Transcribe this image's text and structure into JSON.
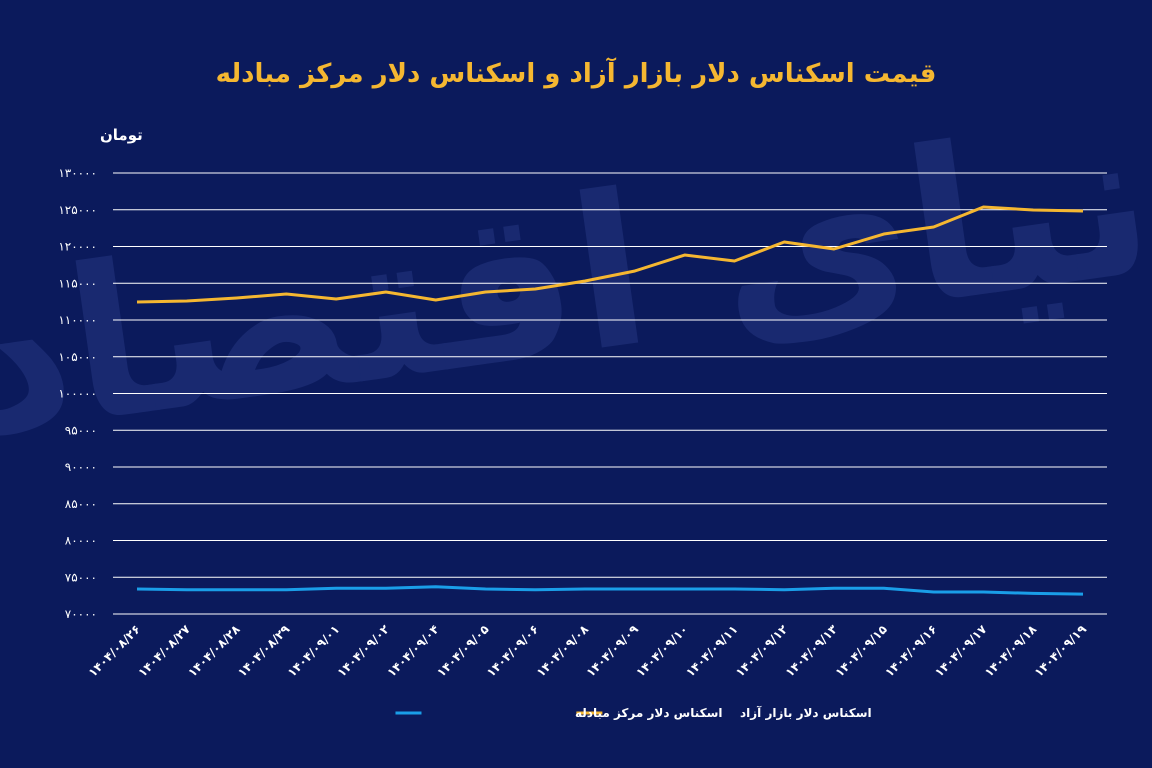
{
  "chart_data": {
    "type": "line",
    "title": "قیمت اسکناس دلار بازار آزاد و اسکناس دلار مرکز مبادله",
    "y_label": "تومان",
    "watermark": "دنیای اقتصاد",
    "categories": [
      "۱۴۰۴/۰۸/۲۶",
      "۱۴۰۴/۰۸/۲۷",
      "۱۴۰۴/۰۸/۲۸",
      "۱۴۰۴/۰۸/۲۹",
      "۱۴۰۴/۰۹/۰۱",
      "۱۴۰۴/۰۹/۰۲",
      "۱۴۰۴/۰۹/۰۴",
      "۱۴۰۴/۰۹/۰۵",
      "۱۴۰۴/۰۹/۰۶",
      "۱۴۰۴/۰۹/۰۸",
      "۱۴۰۴/۰۹/۰۹",
      "۱۴۰۴/۰۹/۱۰",
      "۱۴۰۴/۰۹/۱۱",
      "۱۴۰۴/۰۹/۱۲",
      "۱۴۰۴/۰۹/۱۳",
      "۱۴۰۴/۰۹/۱۵",
      "۱۴۰۴/۰۹/۱۶",
      "۱۴۰۴/۰۹/۱۷",
      "۱۴۰۴/۰۹/۱۸",
      "۱۴۰۴/۰۹/۱۹"
    ],
    "series": [
      {
        "name": "اسکناس دلار بازار آزاد",
        "color": "#f5b731",
        "values": [
          112450,
          112580,
          112990,
          113540,
          112860,
          113810,
          112720,
          113810,
          114220,
          115310,
          116670,
          118840,
          118030,
          120610,
          119660,
          121700,
          122650,
          125370,
          124970,
          124830
        ]
      },
      {
        "name": "اسکناس دلار مرکز مبادله",
        "color": "#1a9ee8",
        "values": [
          73400,
          73300,
          73300,
          73300,
          73500,
          73500,
          73700,
          73400,
          73300,
          73400,
          73400,
          73400,
          73400,
          73300,
          73500,
          73500,
          73000,
          73000,
          72800,
          72700
        ]
      }
    ],
    "ylim": [
      70000,
      130000
    ],
    "yticks": [
      {
        "value": 70000,
        "label": "۷۰۰۰۰"
      },
      {
        "value": 75000,
        "label": "۷۵۰۰۰"
      },
      {
        "value": 80000,
        "label": "۸۰۰۰۰"
      },
      {
        "value": 85000,
        "label": "۸۵۰۰۰"
      },
      {
        "value": 90000,
        "label": "۹۰۰۰۰"
      },
      {
        "value": 95000,
        "label": "۹۵۰۰۰"
      },
      {
        "value": 100000,
        "label": "۱۰۰۰۰۰"
      },
      {
        "value": 105000,
        "label": "۱۰۵۰۰۰"
      },
      {
        "value": 110000,
        "label": "۱۱۰۰۰۰"
      },
      {
        "value": 115000,
        "label": "۱۱۵۰۰۰"
      },
      {
        "value": 120000,
        "label": "۱۲۰۰۰۰"
      },
      {
        "value": 125000,
        "label": "۱۲۵۰۰۰"
      },
      {
        "value": 130000,
        "label": "۱۳۰۰۰۰"
      }
    ],
    "grid": true,
    "legend": "bottom"
  }
}
